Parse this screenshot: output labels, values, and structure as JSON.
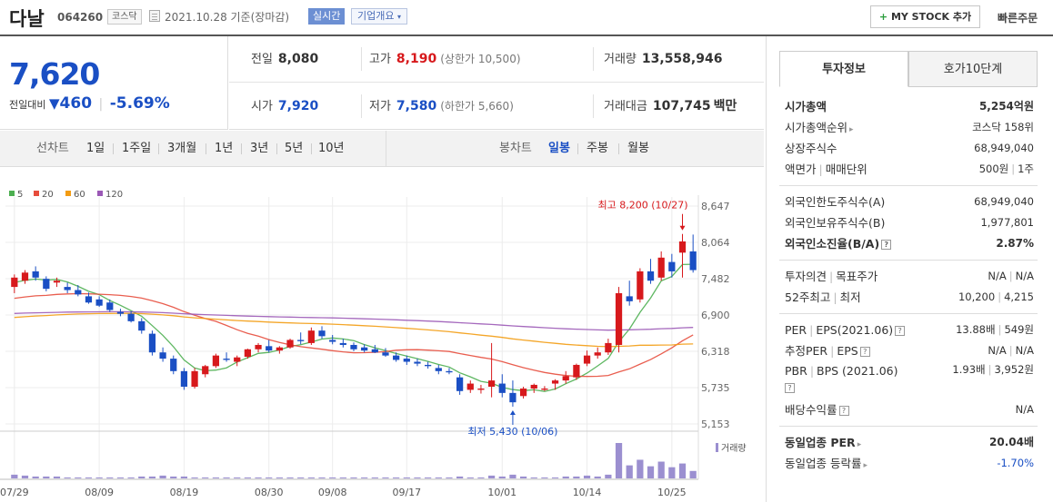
{
  "header": {
    "name": "다날",
    "code": "064260",
    "market": "코스닥",
    "date": "2021.10.28 기준(장마감)",
    "realtime": "실시간",
    "company_overview": "기업개요",
    "mystock": "MY STOCK 추가",
    "quick_order": "빠른주문"
  },
  "summary": {
    "price": "7,620",
    "change_label": "전일대비",
    "change": "460",
    "change_pct": "-5.69%"
  },
  "quotes": {
    "prev_label": "전일",
    "prev": "8,080",
    "high_label": "고가",
    "high": "8,190",
    "upper_limit": "(상한가 10,500)",
    "volume_label": "거래량",
    "volume": "13,558,946",
    "open_label": "시가",
    "open": "7,920",
    "low_label": "저가",
    "low": "7,580",
    "lower_limit": "(하한가 5,660)",
    "amount_label": "거래대금",
    "amount": "107,745",
    "amount_unit": "백만"
  },
  "chart_controls": {
    "line_label": "선차트",
    "line_periods": [
      "1일",
      "1주일",
      "3개월",
      "1년",
      "3년",
      "5년",
      "10년"
    ],
    "candle_label": "봉차트",
    "candle_periods": [
      "일봉",
      "주봉",
      "월봉"
    ],
    "active_candle": "일봉"
  },
  "colors": {
    "rise": "#d7191c",
    "fall": "#1a4fc4",
    "ma5": "#4caf50",
    "ma20": "#e74c3c",
    "ma60": "#f39c12",
    "ma120": "#9b59b6"
  },
  "chart_data": {
    "type": "candlestick",
    "legend": [
      "5",
      "20",
      "60",
      "120"
    ],
    "y_ticks": [
      "8,647",
      "8,064",
      "7,482",
      "6,900",
      "6,318",
      "5,735",
      "5,153"
    ],
    "y_tick_values": [
      8647,
      8064,
      7482,
      6900,
      6318,
      5735,
      5153
    ],
    "ylim": [
      5153,
      8647
    ],
    "x_ticks": [
      "07/29",
      "08/09",
      "08/19",
      "08/30",
      "09/08",
      "09/17",
      "10/01",
      "10/14",
      "10/25"
    ],
    "x_tick_index": [
      0,
      8,
      16,
      24,
      30,
      37,
      46,
      54,
      62
    ],
    "annotation_high": "최고 8,200 (10/27)",
    "annotation_low": "최저 5,430 (10/06)",
    "volume_label": "거래량",
    "candles": [
      [
        7350,
        7550,
        7250,
        7500
      ],
      [
        7450,
        7620,
        7400,
        7580
      ],
      [
        7600,
        7680,
        7450,
        7500
      ],
      [
        7480,
        7520,
        7280,
        7320
      ],
      [
        7420,
        7500,
        7350,
        7450
      ],
      [
        7350,
        7420,
        7250,
        7300
      ],
      [
        7300,
        7380,
        7200,
        7230
      ],
      [
        7200,
        7260,
        7080,
        7100
      ],
      [
        7150,
        7200,
        7030,
        7050
      ],
      [
        7100,
        7150,
        6950,
        6980
      ],
      [
        6950,
        7000,
        6880,
        6920
      ],
      [
        6920,
        6960,
        6780,
        6800
      ],
      [
        6800,
        6850,
        6600,
        6650
      ],
      [
        6600,
        6650,
        6250,
        6300
      ],
      [
        6300,
        6380,
        6150,
        6200
      ],
      [
        6200,
        6250,
        5950,
        6000
      ],
      [
        6000,
        6050,
        5700,
        5750
      ],
      [
        5750,
        6050,
        5720,
        6000
      ],
      [
        5950,
        6100,
        5900,
        6080
      ],
      [
        6080,
        6280,
        6050,
        6250
      ],
      [
        6200,
        6300,
        6150,
        6180
      ],
      [
        6150,
        6250,
        6080,
        6220
      ],
      [
        6230,
        6360,
        6200,
        6350
      ],
      [
        6350,
        6450,
        6300,
        6420
      ],
      [
        6400,
        6500,
        6300,
        6330
      ],
      [
        6330,
        6400,
        6280,
        6380
      ],
      [
        6380,
        6520,
        6360,
        6500
      ],
      [
        6500,
        6620,
        6430,
        6480
      ],
      [
        6450,
        6700,
        6420,
        6650
      ],
      [
        6650,
        6720,
        6520,
        6560
      ],
      [
        6500,
        6580,
        6430,
        6470
      ],
      [
        6450,
        6520,
        6380,
        6420
      ],
      [
        6420,
        6460,
        6320,
        6350
      ],
      [
        6380,
        6430,
        6300,
        6330
      ],
      [
        6350,
        6420,
        6290,
        6300
      ],
      [
        6300,
        6370,
        6230,
        6250
      ],
      [
        6250,
        6300,
        6150,
        6180
      ],
      [
        6200,
        6250,
        6100,
        6150
      ],
      [
        6150,
        6200,
        6080,
        6120
      ],
      [
        6100,
        6150,
        6040,
        6080
      ],
      [
        6050,
        6100,
        5950,
        6000
      ],
      [
        6000,
        6050,
        5950,
        5980
      ],
      [
        5900,
        5950,
        5620,
        5680
      ],
      [
        5700,
        5850,
        5650,
        5800
      ],
      [
        5700,
        5780,
        5640,
        5720
      ],
      [
        5750,
        6450,
        5580,
        5850
      ],
      [
        5800,
        5950,
        5580,
        5650
      ],
      [
        5650,
        5850,
        5430,
        5500
      ],
      [
        5600,
        5750,
        5560,
        5720
      ],
      [
        5720,
        5800,
        5650,
        5780
      ],
      [
        5700,
        5760,
        5680,
        5720
      ],
      [
        5800,
        5870,
        5700,
        5850
      ],
      [
        5850,
        6000,
        5800,
        5920
      ],
      [
        5900,
        6120,
        5860,
        6100
      ],
      [
        6120,
        6330,
        6080,
        6250
      ],
      [
        6250,
        6380,
        6200,
        6300
      ],
      [
        6300,
        6520,
        6260,
        6450
      ],
      [
        6420,
        7350,
        6300,
        7250
      ],
      [
        7200,
        7450,
        7050,
        7120
      ],
      [
        7150,
        7650,
        7100,
        7600
      ],
      [
        7600,
        7800,
        7400,
        7450
      ],
      [
        7500,
        7920,
        7450,
        7820
      ],
      [
        7750,
        7880,
        7500,
        7600
      ],
      [
        7900,
        8200,
        7500,
        8080
      ],
      [
        7920,
        8190,
        7580,
        7620
      ]
    ],
    "volumes": [
      4,
      3,
      2,
      2,
      2,
      1,
      1,
      1,
      1,
      1,
      1,
      1,
      2,
      2,
      3,
      2,
      2,
      1,
      1,
      1,
      1,
      1,
      1,
      1,
      1,
      1,
      1,
      1,
      1,
      1,
      1,
      1,
      1,
      1,
      1,
      1,
      1,
      1,
      1,
      1,
      1,
      1,
      2,
      1,
      1,
      3,
      2,
      4,
      2,
      1,
      1,
      1,
      2,
      2,
      3,
      2,
      4,
      38,
      14,
      20,
      13,
      18,
      12,
      16,
      8
    ]
  },
  "right_panel": {
    "tabs": [
      "투자정보",
      "호가10단계"
    ],
    "market_cap_label": "시가총액",
    "market_cap": "5,254억원",
    "market_cap_rank_label": "시가총액순위",
    "market_cap_rank": "코스닥 158위",
    "shares_label": "상장주식수",
    "shares": "68,949,040",
    "par_label": "액면가",
    "trade_unit_label": "매매단위",
    "par": "500원",
    "trade_unit": "1주",
    "foreign_limit_label": "외국인한도주식수(A)",
    "foreign_limit": "68,949,040",
    "foreign_hold_label": "외국인보유주식수(B)",
    "foreign_hold": "1,977,801",
    "foreign_ratio_label": "외국인소진율(B/A)",
    "foreign_ratio": "2.87%",
    "opinion_label": "투자의견",
    "target_label": "목표주가",
    "opinion": "N/A",
    "target": "N/A",
    "w52_high_label": "52주최고",
    "w52_low_label": "최저",
    "w52_high": "10,200",
    "w52_low": "4,215",
    "per_label": "PER",
    "eps_label": "EPS(2021.06)",
    "per": "13.88배",
    "eps": "549원",
    "est_per_label": "추정PER",
    "est_eps_label": "EPS",
    "est_per": "N/A",
    "est_eps": "N/A",
    "pbr_label": "PBR",
    "bps_label": "BPS (2021.06)",
    "pbr": "1.93배",
    "bps": "3,952원",
    "dividend_label": "배당수익률",
    "dividend": "N/A",
    "sector_per_label": "동일업종 PER",
    "sector_per": "20.04배",
    "sector_change_label": "동일업종 등락률",
    "sector_change": "-1.70%"
  }
}
